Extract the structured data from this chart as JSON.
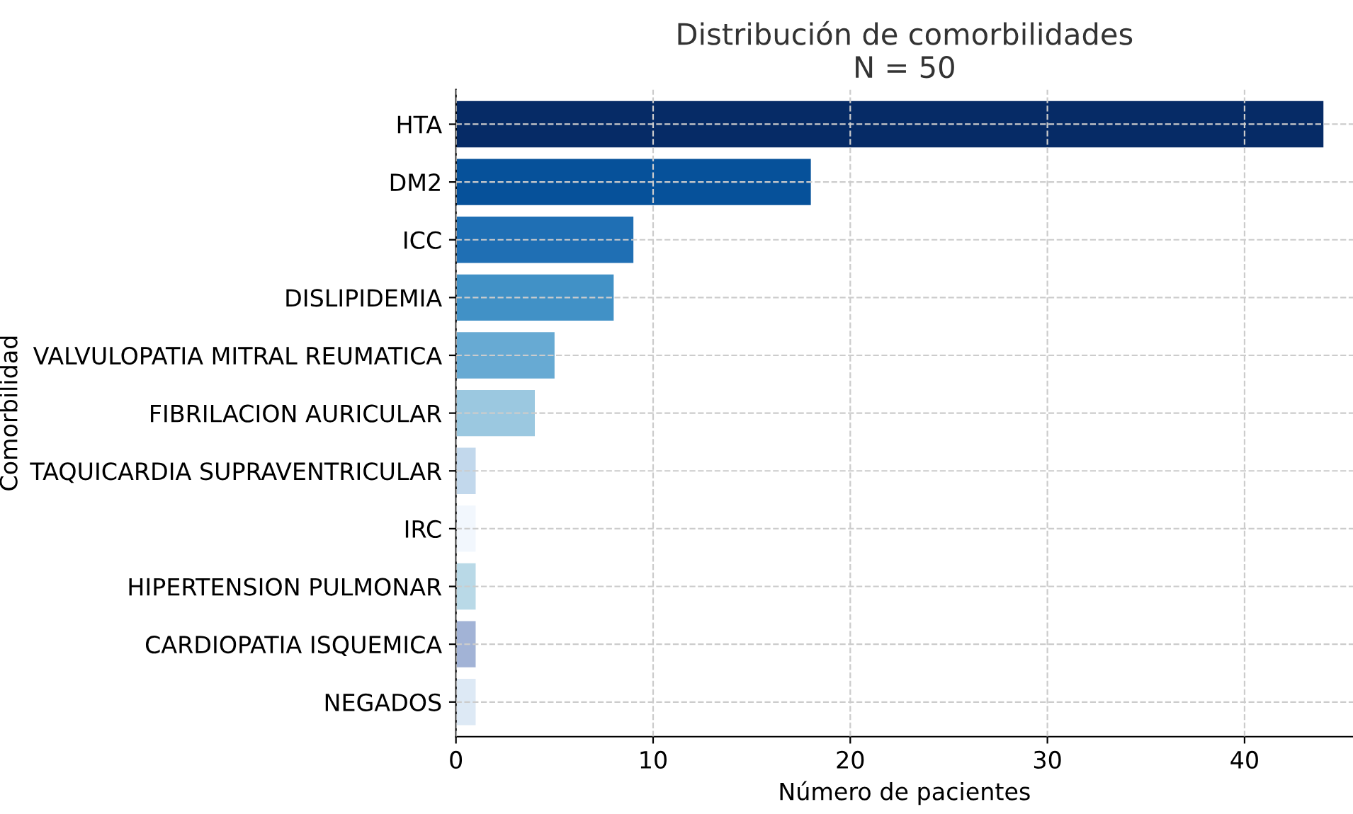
{
  "chart_data": {
    "type": "bar",
    "orientation": "horizontal",
    "title": "Distribución de comorbilidades\nN = 50",
    "xlabel": "Número de pacientes",
    "ylabel": "Comorbilidad",
    "categories": [
      "HTA",
      "DM2",
      "ICC",
      "DISLIPIDEMIA",
      "VALVULOPATIA MITRAL REUMATICA",
      "FIBRILACION AURICULAR",
      "TAQUICARDIA SUPRAVENTRICULAR",
      "IRC",
      "HIPERTENSION PULMONAR",
      "CARDIOPATIA ISQUEMICA",
      "NEGADOS"
    ],
    "values": [
      44,
      18,
      9,
      8,
      5,
      4,
      1,
      1,
      1,
      1,
      1
    ],
    "colors": [
      "#062b66",
      "#06519a",
      "#1f6fb4",
      "#4191c6",
      "#67aad3",
      "#9bc8e0",
      "#c2d8ec",
      "#f2f7fd",
      "#b9d9e7",
      "#a2b3d6",
      "#dde9f5"
    ],
    "xlim": [
      0,
      45.5
    ],
    "xticks": [
      0,
      10,
      20,
      30,
      40
    ],
    "grid": true,
    "line_style": "dashed"
  }
}
